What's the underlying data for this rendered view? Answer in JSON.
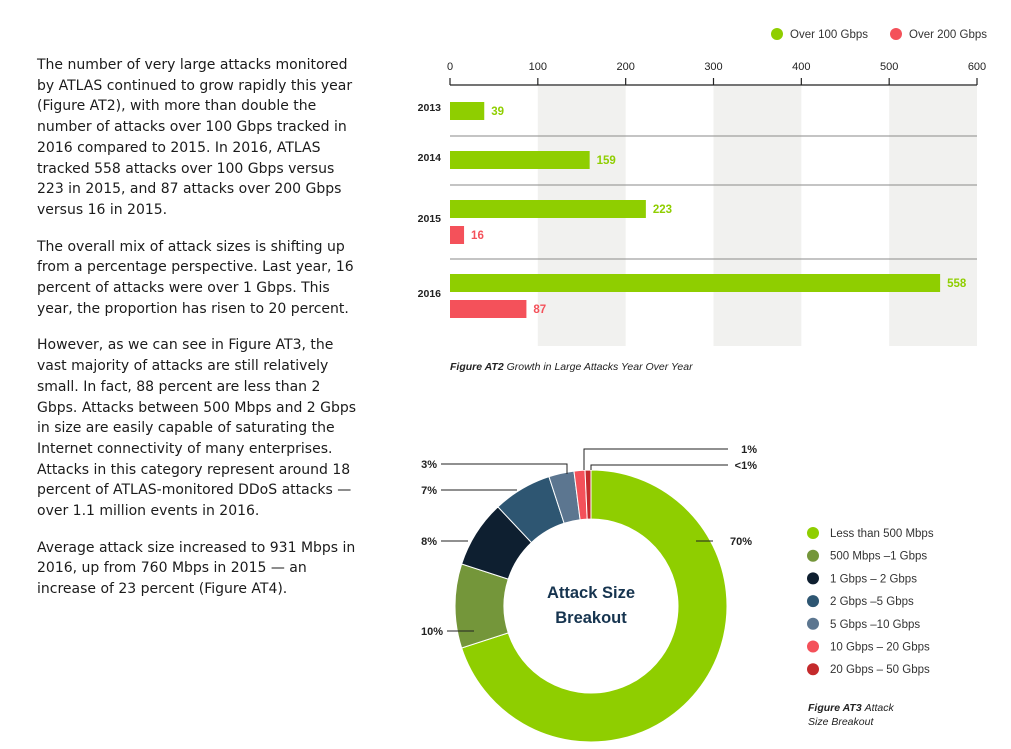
{
  "text_column": {
    "paragraphs": [
      "The number of very large attacks monitored by ATLAS continued to grow rapidly this year (Figure AT2), with more than double the number of attacks over 100 Gbps tracked in 2016 compared to 2015. In 2016, ATLAS tracked 558 attacks over 100 Gbps versus 223 in 2015, and 87 attacks over 200 Gbps versus 16 in 2015.",
      "The overall mix of attack sizes is shifting up from a percentage perspective. Last year, 16 percent of attacks were over 1 Gbps. This year, the proportion has risen to 20 percent.",
      "However, as we can see in Figure AT3, the vast majority of attacks are still relatively small. In fact, 88 percent are less than 2 Gbps. Attacks between 500 Mbps and 2 Gbps in size are easily capable of saturating the Internet connectivity of many enterprises. Attacks in this category represent around 18 percent of ATLAS-monitored DDoS attacks — over 1.1 million events in 2016.",
      "Average attack size increased to 931 Mbps in 2016, up from 760 Mbps in 2015 — an increase of 23 percent (Figure AT4)."
    ]
  },
  "colors": {
    "green": "#8fce00",
    "red": "#f4515a",
    "band": "#f1f1ef",
    "divider": "#8a8a8a"
  },
  "chart_data": [
    {
      "type": "bar",
      "orientation": "horizontal",
      "categories": [
        "2013",
        "2014",
        "2015",
        "2016"
      ],
      "series": [
        {
          "name": "Over 100 Gbps",
          "values": [
            39,
            159,
            223,
            558
          ],
          "color": "#8fce00"
        },
        {
          "name": "Over 200 Gbps",
          "values": [
            null,
            null,
            16,
            87
          ],
          "color": "#f4515a"
        }
      ],
      "xlim": [
        0,
        600
      ],
      "xticks": [
        0,
        100,
        200,
        300,
        400,
        500,
        600
      ],
      "legend_position": "top-right",
      "caption_label": "Figure AT2",
      "caption_text": "Growth in Large Attacks Year Over Year"
    },
    {
      "type": "pie",
      "donut": true,
      "center_title": [
        "Attack Size",
        "Breakout"
      ],
      "slices": [
        {
          "label": "Less than 500 Mbps",
          "value": 70,
          "pct_label": "70%",
          "color": "#8fce00"
        },
        {
          "label": "500 Mbps –1 Gbps",
          "value": 10,
          "pct_label": "10%",
          "color": "#74963a"
        },
        {
          "label": "1 Gbps – 2 Gbps",
          "value": 8,
          "pct_label": "8%",
          "color": "#0e1f30"
        },
        {
          "label": "2 Gbps –5 Gbps",
          "value": 7,
          "pct_label": "7%",
          "color": "#2e5672"
        },
        {
          "label": "5 Gbps –10 Gbps",
          "value": 3,
          "pct_label": "3%",
          "color": "#5c7690"
        },
        {
          "label": "10 Gbps – 20 Gbps",
          "value": 1.3,
          "pct_label": "1%",
          "color": "#f4515a"
        },
        {
          "label": "20 Gbps – 50 Gbps",
          "value": 0.7,
          "pct_label": "<1%",
          "color": "#c42a2c"
        }
      ],
      "legend_position": "right",
      "caption_label": "Figure AT3",
      "caption_text_lines": [
        "Attack",
        "Size Breakout"
      ]
    }
  ]
}
